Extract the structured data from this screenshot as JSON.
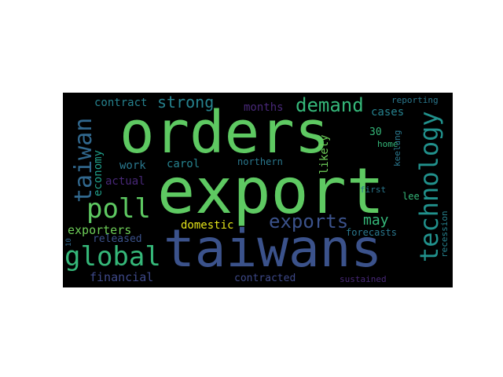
{
  "words": {
    "orders": {
      "text": "orders",
      "color": "#5ec962"
    },
    "export": {
      "text": "export",
      "color": "#5ec962"
    },
    "taiwans": {
      "text": "taiwans",
      "color": "#3b528b"
    },
    "poll": {
      "text": "poll",
      "color": "#5ec962"
    },
    "global": {
      "text": "global",
      "color": "#35b779"
    },
    "taiwan": {
      "text": "taiwan",
      "color": "#31688e"
    },
    "technology": {
      "text": "technology",
      "color": "#21918c"
    },
    "demand": {
      "text": "demand",
      "color": "#35b779"
    },
    "exports": {
      "text": "exports",
      "color": "#3b528b"
    },
    "strong": {
      "text": "strong",
      "color": "#26828e"
    },
    "contract": {
      "text": "contract",
      "color": "#26828e"
    },
    "economy": {
      "text": "economy",
      "color": "#1f9e89"
    },
    "months": {
      "text": "months",
      "color": "#482878"
    },
    "cases": {
      "text": "cases",
      "color": "#26828e"
    },
    "reporting": {
      "text": "reporting",
      "color": "#2a788e"
    },
    "n30": {
      "text": "30",
      "color": "#35b779"
    },
    "home": {
      "text": "home",
      "color": "#35b779"
    },
    "keelung": {
      "text": "keelung",
      "color": "#2a788e"
    },
    "likely": {
      "text": "likely",
      "color": "#6ece58"
    },
    "work": {
      "text": "work",
      "color": "#2a788e"
    },
    "carol": {
      "text": "carol",
      "color": "#26828e"
    },
    "northern": {
      "text": "northern",
      "color": "#2a788e"
    },
    "actual": {
      "text": "actual",
      "color": "#482878"
    },
    "first": {
      "text": "first",
      "color": "#2a788e"
    },
    "lee": {
      "text": "lee",
      "color": "#35b779"
    },
    "may": {
      "text": "may",
      "color": "#35b779"
    },
    "domestic": {
      "text": "domestic",
      "color": "#e4e419"
    },
    "exporters": {
      "text": "exporters",
      "color": "#6ece58"
    },
    "released": {
      "text": "released",
      "color": "#3b528b"
    },
    "forecasts": {
      "text": "forecasts",
      "color": "#2a788e"
    },
    "n10": {
      "text": "10",
      "color": "#31688e"
    },
    "recession": {
      "text": "recession",
      "color": "#26828e"
    },
    "financial": {
      "text": "financial",
      "color": "#3e4989"
    },
    "contracted": {
      "text": "contracted",
      "color": "#3e4989"
    },
    "sustained": {
      "text": "sustained",
      "color": "#482878"
    }
  }
}
